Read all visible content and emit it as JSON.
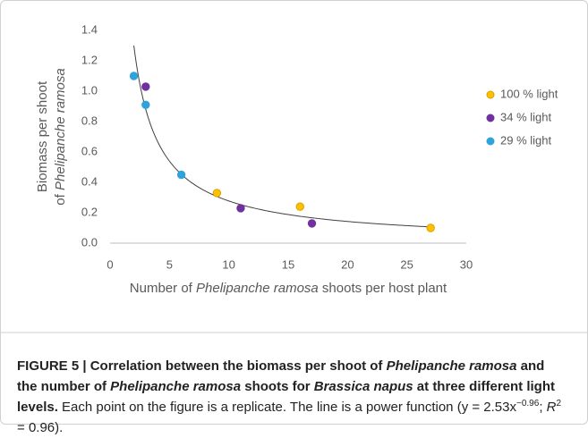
{
  "chart_data": {
    "type": "scatter",
    "xlabel": [
      "Number of ",
      "Phelipanche ramosa",
      " shoots per host plant"
    ],
    "ylabel": [
      [
        "Biomass per shoot"
      ],
      [
        "of ",
        "Phelipanche ramosa"
      ]
    ],
    "xlim": [
      0,
      30
    ],
    "xticks": [
      0,
      5,
      10,
      15,
      20,
      25,
      30
    ],
    "ylim": [
      0,
      1.4
    ],
    "yticks": [
      {
        "value": 0,
        "label": "0.0"
      },
      0.2,
      0.4,
      0.6,
      0.8,
      {
        "value": 1,
        "label": "1.0"
      },
      1.2,
      1.4
    ],
    "legend": "right",
    "series": [
      {
        "name": "100 % light",
        "color": "#ffc000",
        "x": [
          9,
          16,
          27
        ],
        "values": [
          0.33,
          0.24,
          0.1
        ]
      },
      {
        "name": "34 % light",
        "color": "#7030a0",
        "x": [
          3,
          11,
          17
        ],
        "values": [
          1.03,
          0.23,
          0.13
        ]
      },
      {
        "name": "29 % light",
        "color": "#2ea3dc",
        "x": [
          2,
          3,
          6
        ],
        "values": [
          1.1,
          0.91,
          0.45
        ]
      }
    ],
    "fit": {
      "a": 2.53,
      "b": -0.96,
      "b_label": "−0.96",
      "r2": 0.96
    }
  },
  "caption": {
    "bold": [
      "FIGURE 5 | Correlation between the biomass per shoot of ",
      "Phelipanche ramosa",
      " and the number of ",
      "Phelipanche ramosa",
      " shoots for ",
      "Brassica napus",
      " at three different light levels."
    ],
    "text": [
      " Each point on the figure is a replicate. The line is a power function (y = ",
      "x",
      "; ",
      "R",
      "2",
      " = ",
      ")."
    ]
  }
}
